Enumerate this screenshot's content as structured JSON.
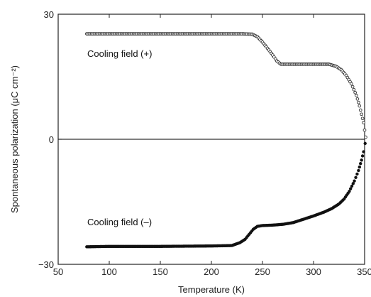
{
  "chart_data": {
    "type": "scatter",
    "title": "",
    "xlabel": "Temperature (K)",
    "ylabel": "Spontaneous polarization (μC cm⁻²)",
    "xlim": [
      50,
      350
    ],
    "ylim": [
      -30,
      30
    ],
    "x_ticks": [
      "50",
      "100",
      "150",
      "200",
      "250",
      "300",
      "350"
    ],
    "y_ticks": [
      "30",
      "0",
      "−30"
    ],
    "y_tick_values": [
      30,
      0,
      -30
    ],
    "grid": false,
    "legend": "none",
    "reference_line_y": 0,
    "annotations": [
      {
        "text": "Cooling field (+)",
        "series": "Cooling field (+)"
      },
      {
        "text": "Cooling field (–)",
        "series": "Cooling field (–)"
      }
    ],
    "series": [
      {
        "name": "Cooling field (+)",
        "marker": "open-circle",
        "color": "#333333",
        "points": [
          [
            78,
            25.3
          ],
          [
            100,
            25.3
          ],
          [
            150,
            25.3
          ],
          [
            200,
            25.3
          ],
          [
            230,
            25.3
          ],
          [
            240,
            25.2
          ],
          [
            245,
            24.6
          ],
          [
            250,
            23.3
          ],
          [
            255,
            21.8
          ],
          [
            260,
            20.2
          ],
          [
            264,
            18.8
          ],
          [
            268,
            18.0
          ],
          [
            280,
            18.0
          ],
          [
            300,
            18.0
          ],
          [
            315,
            18.0
          ],
          [
            322,
            17.5
          ],
          [
            327,
            16.7
          ],
          [
            332,
            15.3
          ],
          [
            337,
            13.3
          ],
          [
            342,
            10.5
          ],
          [
            345,
            8.0
          ],
          [
            347,
            6.0
          ],
          [
            349,
            4.0
          ],
          [
            350,
            2.2
          ],
          [
            351,
            0.5
          ]
        ]
      },
      {
        "name": "Cooling field (–)",
        "marker": "filled-circle",
        "color": "#111111",
        "points": [
          [
            78,
            -25.8
          ],
          [
            100,
            -25.7
          ],
          [
            150,
            -25.7
          ],
          [
            200,
            -25.6
          ],
          [
            220,
            -25.5
          ],
          [
            228,
            -24.8
          ],
          [
            233,
            -24.0
          ],
          [
            237,
            -22.8
          ],
          [
            241,
            -21.6
          ],
          [
            245,
            -20.9
          ],
          [
            250,
            -20.7
          ],
          [
            260,
            -20.6
          ],
          [
            270,
            -20.4
          ],
          [
            280,
            -20.0
          ],
          [
            290,
            -19.2
          ],
          [
            300,
            -18.4
          ],
          [
            310,
            -17.5
          ],
          [
            318,
            -16.6
          ],
          [
            325,
            -15.5
          ],
          [
            330,
            -14.3
          ],
          [
            335,
            -12.5
          ],
          [
            340,
            -10.0
          ],
          [
            344,
            -7.5
          ],
          [
            347,
            -5.0
          ],
          [
            349,
            -3.0
          ],
          [
            350.5,
            -1.0
          ]
        ]
      }
    ]
  }
}
